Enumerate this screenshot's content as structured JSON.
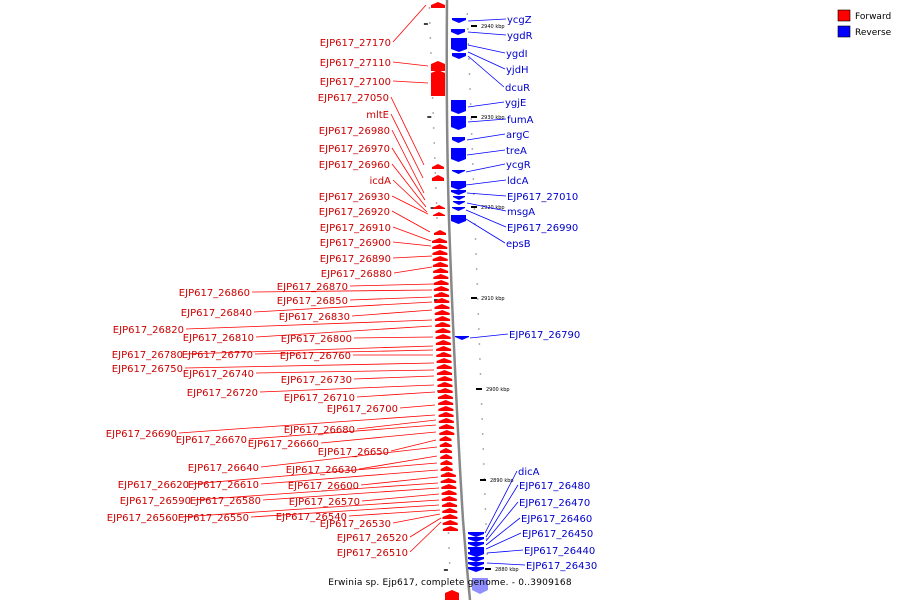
{
  "legend": [
    {
      "label": "Forward",
      "color": "#ff0000"
    },
    {
      "label": "Reverse",
      "color": "#0000ff"
    }
  ],
  "caption": "Erwinia sp. Ejp617, complete genome. - 0..3909168",
  "colors": {
    "forward": "#ff0000",
    "reverse": "#0000ff",
    "forward_label": "#cc0000",
    "reverse_label": "#0000cc",
    "backbone": "#888888"
  },
  "ticks": [
    "2940 kbp",
    "2930 kbp",
    "2920 kbp",
    "2910 kbp",
    "2900 kbp",
    "2890 kbp",
    "2880 kbp"
  ],
  "forward_labels": [
    "EJP617_27170",
    "EJP617_27110",
    "EJP617_27100",
    "EJP617_27050",
    "mltE",
    "EJP617_26980",
    "EJP617_26970",
    "EJP617_26960",
    "icdA",
    "EJP617_26930",
    "EJP617_26920",
    "EJP617_26910",
    "EJP617_26900",
    "EJP617_26890",
    "EJP617_26880",
    "EJP617_26870",
    "EJP617_26860",
    "EJP617_26850",
    "EJP617_26840",
    "EJP617_26830",
    "EJP617_26820",
    "EJP617_26810",
    "EJP617_26800",
    "EJP617_26780",
    "EJP617_26770",
    "EJP617_26760",
    "EJP617_26750",
    "EJP617_26740",
    "EJP617_26730",
    "EJP617_26720",
    "EJP617_26710",
    "EJP617_26700",
    "EJP617_26690",
    "EJP617_26680",
    "EJP617_26670",
    "EJP617_26660",
    "EJP617_26650",
    "EJP617_26640",
    "EJP617_26630",
    "EJP617_26620",
    "EJP617_26610",
    "EJP617_26600",
    "EJP617_26590",
    "EJP617_26580",
    "EJP617_26570",
    "EJP617_26560",
    "EJP617_26550",
    "EJP617_26540",
    "EJP617_26530",
    "EJP617_26520",
    "EJP617_26510"
  ],
  "reverse_labels": [
    "ycgZ",
    "ygdR",
    "ygdI",
    "yjdH",
    "dcuR",
    "ygjE",
    "fumA",
    "argC",
    "treA",
    "ycgR",
    "ldcA",
    "EJP617_27010",
    "msgA",
    "EJP617_26990",
    "epsB",
    "EJP617_26790",
    "dicA",
    "EJP617_26480",
    "EJP617_26470",
    "EJP617_26460",
    "EJP617_26450",
    "EJP617_26440",
    "EJP617_26430"
  ]
}
